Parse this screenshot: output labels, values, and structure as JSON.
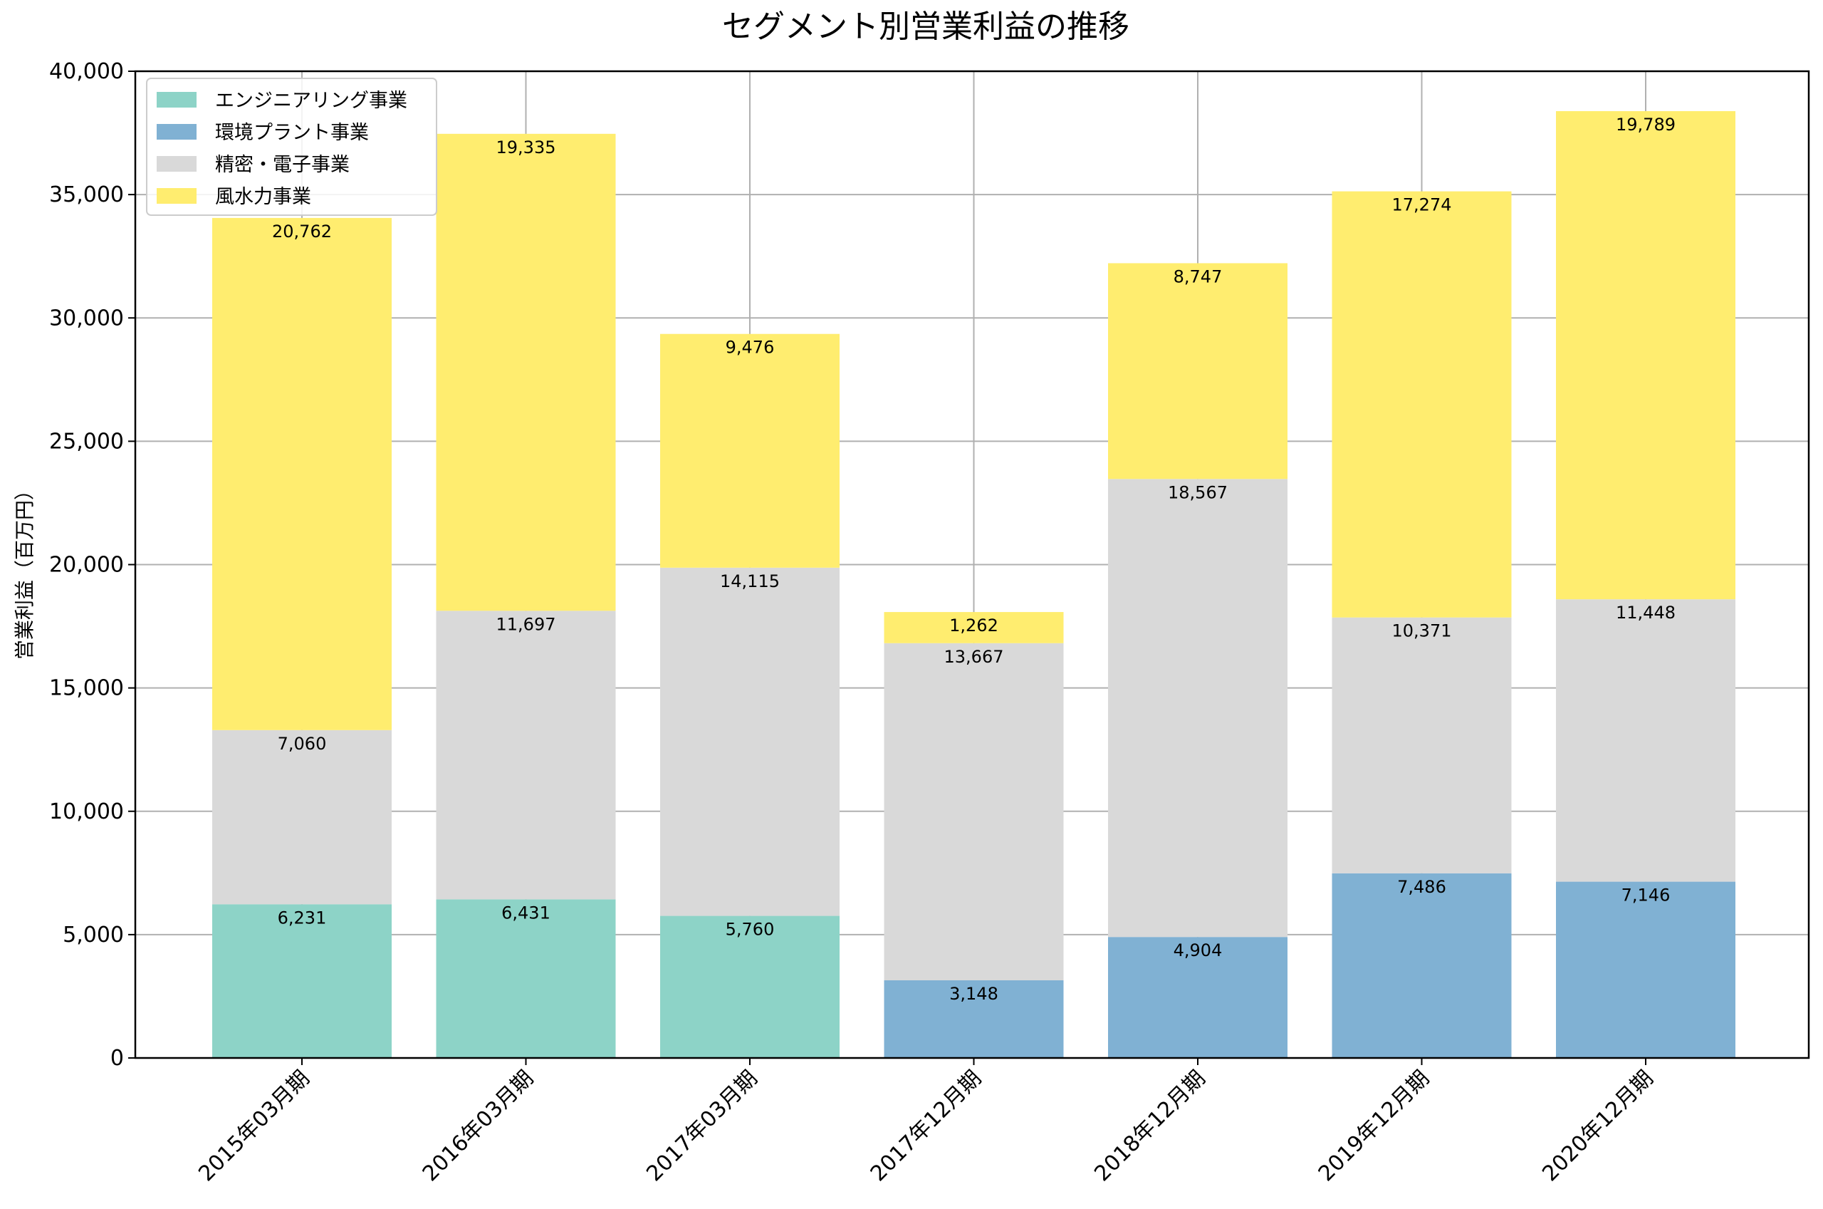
{
  "chart_data": {
    "type": "bar",
    "stacked": true,
    "title": "セグメント別営業利益の推移",
    "xlabel": "",
    "ylabel": "営業利益（百万円）",
    "ylim": [
      0,
      40000
    ],
    "yticks": [
      0,
      5000,
      10000,
      15000,
      20000,
      25000,
      30000,
      35000,
      40000
    ],
    "ytick_labels": [
      "0",
      "5,000",
      "10,000",
      "15,000",
      "20,000",
      "25,000",
      "30,000",
      "35,000",
      "40,000"
    ],
    "categories": [
      "2015年03月期",
      "2016年03月期",
      "2017年03月期",
      "2017年12月期",
      "2018年12月期",
      "2019年12月期",
      "2020年12月期"
    ],
    "series": [
      {
        "name": "エンジニアリング事業",
        "color": "#8dd3c7",
        "values": [
          6231,
          6431,
          5760,
          null,
          null,
          null,
          null
        ],
        "labels": [
          "6,231",
          "6,431",
          "5,760",
          "",
          "",
          "",
          ""
        ]
      },
      {
        "name": "環境プラント事業",
        "color": "#80b1d3",
        "values": [
          null,
          null,
          null,
          3148,
          4904,
          7486,
          7146
        ],
        "labels": [
          "",
          "",
          "",
          "3,148",
          "4,904",
          "7,486",
          "7,146"
        ]
      },
      {
        "name": "精密・電子事業",
        "color": "#d9d9d9",
        "values": [
          7060,
          11697,
          14115,
          13667,
          18567,
          10371,
          11448
        ],
        "labels": [
          "7,060",
          "11,697",
          "14,115",
          "13,667",
          "18,567",
          "10,371",
          "11,448"
        ]
      },
      {
        "name": "風水力事業",
        "color": "#ffed6f",
        "values": [
          20762,
          19335,
          9476,
          1262,
          8747,
          17274,
          19789
        ],
        "labels": [
          "20,762",
          "19,335",
          "9,476",
          "1,262",
          "8,747",
          "17,274",
          "19,789"
        ]
      }
    ],
    "grid": true,
    "legend_position": "top-left"
  }
}
